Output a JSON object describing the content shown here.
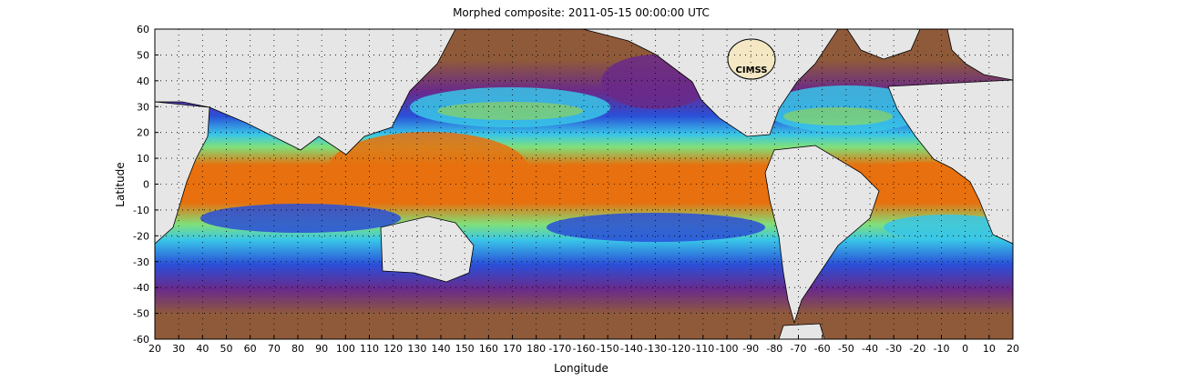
{
  "figure": {
    "title": "Morphed composite: 2011-05-15 00:00:00 UTC",
    "xlabel": "Longitude",
    "ylabel": "Latitude",
    "x_ticks": [
      "20",
      "30",
      "40",
      "50",
      "60",
      "70",
      "80",
      "90",
      "100",
      "110",
      "120",
      "130",
      "140",
      "150",
      "160",
      "170",
      "180",
      "-170",
      "-160",
      "-150",
      "-140",
      "-130",
      "-120",
      "-110",
      "-100",
      "-90",
      "-80",
      "-70",
      "-60",
      "-50",
      "-40",
      "-30",
      "-20",
      "-10",
      "0",
      "10",
      "20"
    ],
    "y_ticks": [
      "60",
      "50",
      "40",
      "30",
      "20",
      "10",
      "0",
      "-10",
      "-20",
      "-30",
      "-40",
      "-50",
      "-60"
    ],
    "logo_text": "CIMSS",
    "colors": {
      "land": "#e6e6e6",
      "ocean_dry": "#8f5a3a",
      "purple": "#6a2a8a",
      "blue": "#2a4fd8",
      "cyan": "#39c6e8",
      "green": "#7fe07a",
      "orange": "#e8700e"
    }
  }
}
